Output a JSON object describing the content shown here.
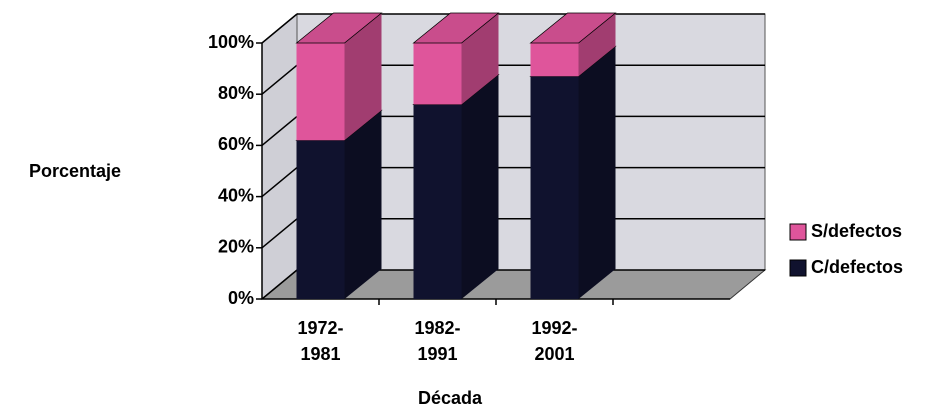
{
  "chart_data": {
    "type": "bar3d_stacked",
    "x_label": "Década",
    "y_label": "Porcentaje",
    "categories": [
      "1972-1981",
      "1982-1991",
      "1992-2001"
    ],
    "series": [
      {
        "name": "C/defectos",
        "color": "#10122e",
        "values": [
          62,
          76,
          87
        ]
      },
      {
        "name": "S/defectos",
        "color": "#df559b",
        "values": [
          38,
          24,
          13
        ]
      }
    ],
    "ylim": [
      0,
      100
    ],
    "yticks": [
      {
        "value": 0,
        "label": "0%"
      },
      {
        "value": 20,
        "label": "20%"
      },
      {
        "value": 40,
        "label": "40%"
      },
      {
        "value": 60,
        "label": "60%"
      },
      {
        "value": 80,
        "label": "80%"
      },
      {
        "value": 100,
        "label": "100%"
      }
    ],
    "grid": true,
    "legend": "right"
  }
}
